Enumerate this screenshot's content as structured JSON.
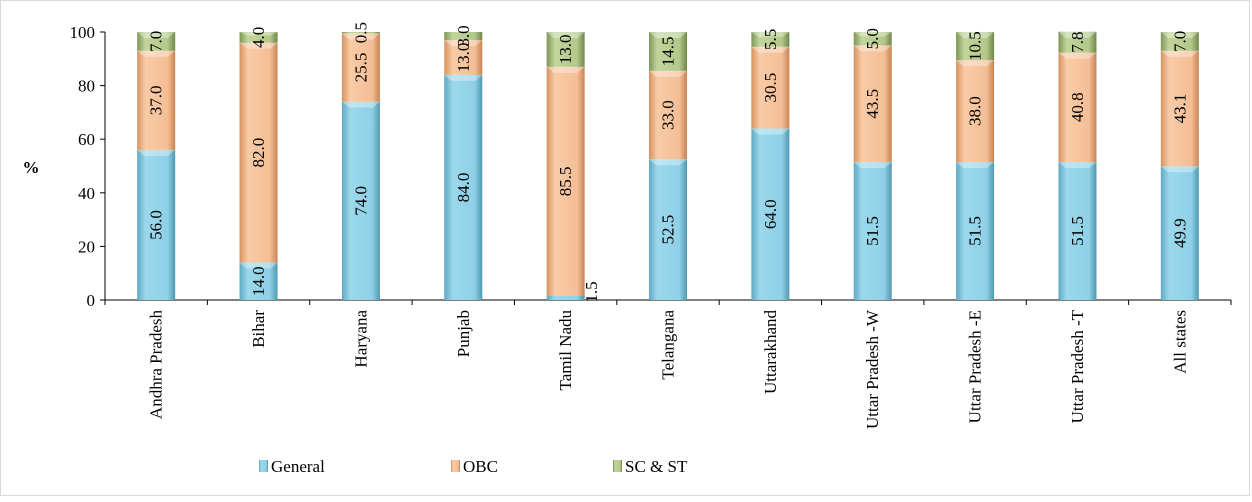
{
  "chart_data": {
    "type": "bar",
    "stacked": true,
    "ylabel": "%",
    "ylim": [
      0,
      100
    ],
    "yticks": [
      0,
      20,
      40,
      60,
      80,
      100
    ],
    "grid": false,
    "legend_position": "bottom",
    "categories": [
      "Andhra Pradesh",
      "Bihar",
      "Haryana",
      "Punjab",
      "Tamil Nadu",
      "Telangana",
      "Uttarakhand",
      "Uttar Pradesh -W",
      "Uttar Pradesh -E",
      "Uttar Pradesh -T",
      "All states"
    ],
    "series": [
      {
        "name": "General",
        "color": "#8fd0e6",
        "values": [
          56.0,
          14.0,
          74.0,
          84.0,
          1.5,
          52.5,
          64.0,
          51.5,
          51.5,
          51.5,
          49.9
        ],
        "labels": [
          "56.0",
          "14.0",
          "74.0",
          "84.0",
          "1.5",
          "52.5",
          "64.0",
          "51.5",
          "51.5",
          "51.5",
          "49.9"
        ]
      },
      {
        "name": "OBC",
        "color": "#f4be96",
        "values": [
          37.0,
          82.0,
          25.5,
          13.0,
          85.5,
          33.0,
          30.5,
          43.5,
          38.0,
          40.8,
          43.1
        ],
        "labels": [
          "37.0",
          "82.0",
          "25.5",
          "13.0",
          "85.5",
          "33.0",
          "30.5",
          "43.5",
          "38.0",
          "40.8",
          "43.1"
        ]
      },
      {
        "name": "SC & ST",
        "color": "#b3c88a",
        "values": [
          7.0,
          4.0,
          0.5,
          3.0,
          13.0,
          14.5,
          5.5,
          5.0,
          10.5,
          7.8,
          7.0
        ],
        "labels": [
          "7.0",
          "4.0",
          "0.5",
          "3.0",
          "13.0",
          "14.5",
          "5.5",
          "5.0",
          "10.5",
          "7.8",
          "7.0"
        ]
      }
    ]
  }
}
